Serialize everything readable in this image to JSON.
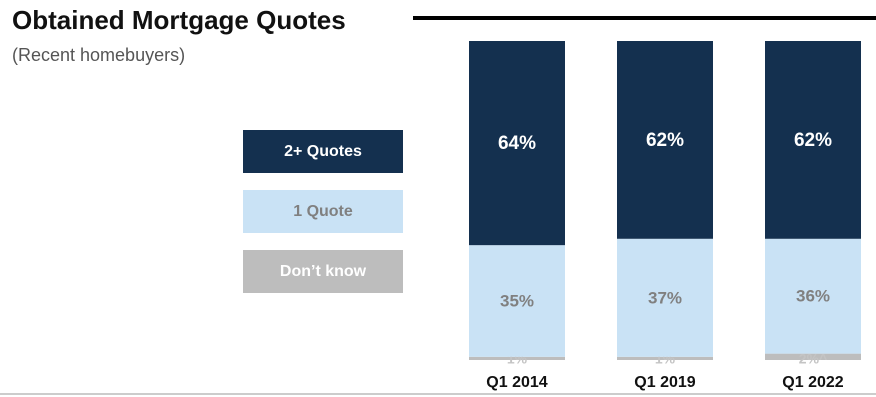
{
  "chart_data": {
    "type": "stacked-bar",
    "title": "Obtained Mortgage Quotes",
    "subtitle": "(Recent homebuyers)",
    "categories": [
      "Q1 2014",
      "Q1 2019",
      "Q1 2022"
    ],
    "series": [
      {
        "name": "2+ Quotes",
        "color": "#14304f",
        "values": [
          64,
          62,
          62
        ],
        "value_labels": [
          "64%",
          "62%",
          "62%"
        ]
      },
      {
        "name": "1 Quote",
        "color": "#c9e2f5",
        "values": [
          35,
          37,
          36
        ],
        "value_labels": [
          "35%",
          "37%",
          "36%"
        ]
      },
      {
        "name": "Don’t know",
        "color": "#bdbdbd",
        "values": [
          1,
          1,
          2
        ],
        "value_labels": [
          "1%",
          "1%",
          "2%^"
        ]
      }
    ]
  }
}
